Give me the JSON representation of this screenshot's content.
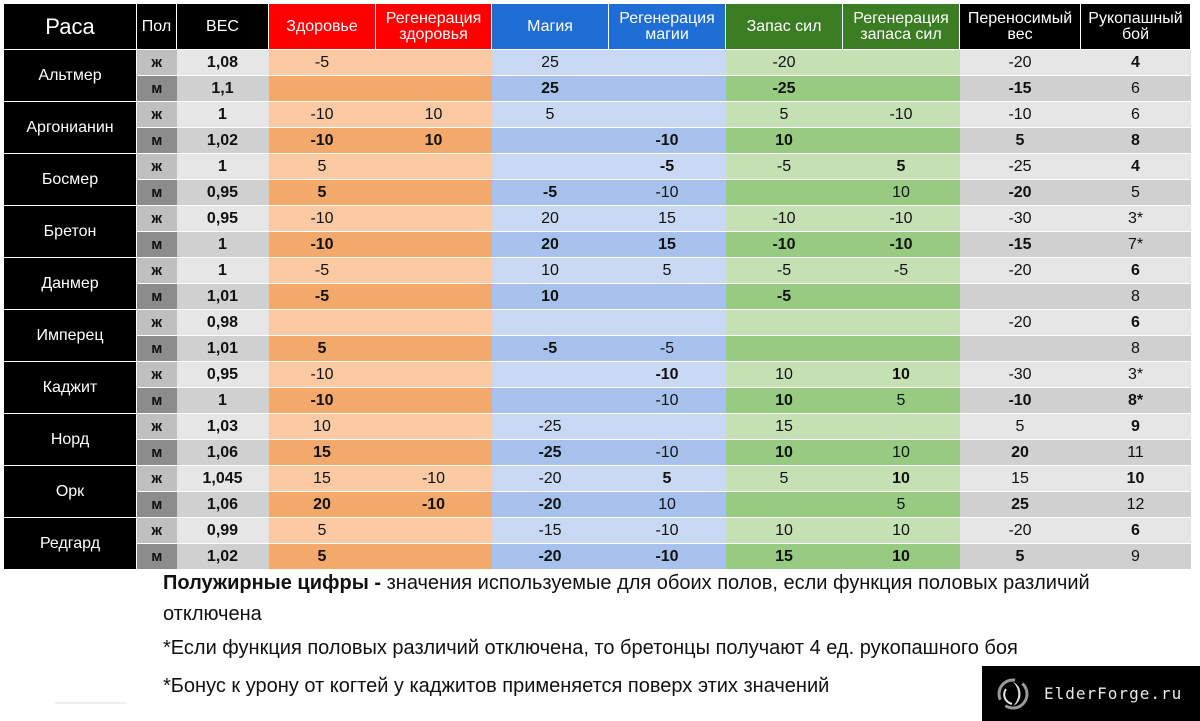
{
  "headers": {
    "race": "Раса",
    "sex": "Пол",
    "weight": "ВЕС",
    "health": "Здоровье",
    "health_regen": "Регенерация здоровья",
    "magic": "Магия",
    "magic_regen": "Регенерация магии",
    "stamina": "Запас сил",
    "stamina_regen": "Регенерация запаса сил",
    "carry": "Переносимый вес",
    "hand": "Рукопашный бой"
  },
  "races": [
    {
      "name": "Альтмер",
      "rows": [
        {
          "sex": "ж",
          "weight": "1,08",
          "hp": {
            "v": "-5",
            "b": false
          },
          "hpr": {
            "v": "",
            "b": false
          },
          "mg": {
            "v": "25",
            "b": false
          },
          "mgr": {
            "v": "",
            "b": false
          },
          "st": {
            "v": "-20",
            "b": false
          },
          "str": {
            "v": "",
            "b": false
          },
          "carry": {
            "v": "-20",
            "b": false
          },
          "hand": {
            "v": "4",
            "b": true
          }
        },
        {
          "sex": "м",
          "weight": "1,1",
          "hp": {
            "v": "",
            "b": false
          },
          "hpr": {
            "v": "",
            "b": false
          },
          "mg": {
            "v": "25",
            "b": true
          },
          "mgr": {
            "v": "",
            "b": false
          },
          "st": {
            "v": "-25",
            "b": true
          },
          "str": {
            "v": "",
            "b": false
          },
          "carry": {
            "v": "-15",
            "b": true
          },
          "hand": {
            "v": "6",
            "b": false
          }
        }
      ]
    },
    {
      "name": "Аргонианин",
      "rows": [
        {
          "sex": "ж",
          "weight": "1",
          "hp": {
            "v": "-10",
            "b": false
          },
          "hpr": {
            "v": "10",
            "b": false
          },
          "mg": {
            "v": "5",
            "b": false
          },
          "mgr": {
            "v": "",
            "b": false
          },
          "st": {
            "v": "5",
            "b": false
          },
          "str": {
            "v": "-10",
            "b": false
          },
          "carry": {
            "v": "-10",
            "b": false
          },
          "hand": {
            "v": "6",
            "b": false
          }
        },
        {
          "sex": "м",
          "weight": "1,02",
          "hp": {
            "v": "-10",
            "b": true
          },
          "hpr": {
            "v": "10",
            "b": true
          },
          "mg": {
            "v": "",
            "b": false
          },
          "mgr": {
            "v": "-10",
            "b": true
          },
          "st": {
            "v": "10",
            "b": true
          },
          "str": {
            "v": "",
            "b": false
          },
          "carry": {
            "v": "5",
            "b": true
          },
          "hand": {
            "v": "8",
            "b": true
          }
        }
      ]
    },
    {
      "name": "Босмер",
      "rows": [
        {
          "sex": "ж",
          "weight": "1",
          "hp": {
            "v": "5",
            "b": false
          },
          "hpr": {
            "v": "",
            "b": false
          },
          "mg": {
            "v": "",
            "b": false
          },
          "mgr": {
            "v": "-5",
            "b": true
          },
          "st": {
            "v": "-5",
            "b": false
          },
          "str": {
            "v": "5",
            "b": true
          },
          "carry": {
            "v": "-25",
            "b": false
          },
          "hand": {
            "v": "4",
            "b": true
          }
        },
        {
          "sex": "м",
          "weight": "0,95",
          "hp": {
            "v": "5",
            "b": true
          },
          "hpr": {
            "v": "",
            "b": false
          },
          "mg": {
            "v": "-5",
            "b": true
          },
          "mgr": {
            "v": "-10",
            "b": false
          },
          "st": {
            "v": "",
            "b": false
          },
          "str": {
            "v": "10",
            "b": false
          },
          "carry": {
            "v": "-20",
            "b": true
          },
          "hand": {
            "v": "5",
            "b": false
          }
        }
      ]
    },
    {
      "name": "Бретон",
      "rows": [
        {
          "sex": "ж",
          "weight": "0,95",
          "hp": {
            "v": "-10",
            "b": false
          },
          "hpr": {
            "v": "",
            "b": false
          },
          "mg": {
            "v": "20",
            "b": false
          },
          "mgr": {
            "v": "15",
            "b": false
          },
          "st": {
            "v": "-10",
            "b": false
          },
          "str": {
            "v": "-10",
            "b": false
          },
          "carry": {
            "v": "-30",
            "b": false
          },
          "hand": {
            "v": "3*",
            "b": false
          }
        },
        {
          "sex": "м",
          "weight": "1",
          "hp": {
            "v": "-10",
            "b": true
          },
          "hpr": {
            "v": "",
            "b": false
          },
          "mg": {
            "v": "20",
            "b": true
          },
          "mgr": {
            "v": "15",
            "b": true
          },
          "st": {
            "v": "-10",
            "b": true
          },
          "str": {
            "v": "-10",
            "b": true
          },
          "carry": {
            "v": "-15",
            "b": true
          },
          "hand": {
            "v": "7*",
            "b": false
          }
        }
      ]
    },
    {
      "name": "Данмер",
      "rows": [
        {
          "sex": "ж",
          "weight": "1",
          "hp": {
            "v": "-5",
            "b": false
          },
          "hpr": {
            "v": "",
            "b": false
          },
          "mg": {
            "v": "10",
            "b": false
          },
          "mgr": {
            "v": "5",
            "b": false
          },
          "st": {
            "v": "-5",
            "b": false
          },
          "str": {
            "v": "-5",
            "b": false
          },
          "carry": {
            "v": "-20",
            "b": false
          },
          "hand": {
            "v": "6",
            "b": true
          }
        },
        {
          "sex": "м",
          "weight": "1,01",
          "hp": {
            "v": "-5",
            "b": true
          },
          "hpr": {
            "v": "",
            "b": false
          },
          "mg": {
            "v": "10",
            "b": true
          },
          "mgr": {
            "v": "",
            "b": false
          },
          "st": {
            "v": "-5",
            "b": true
          },
          "str": {
            "v": "",
            "b": false
          },
          "carry": {
            "v": "",
            "b": false
          },
          "hand": {
            "v": "8",
            "b": false
          }
        }
      ]
    },
    {
      "name": "Имперец",
      "rows": [
        {
          "sex": "ж",
          "weight": "0,98",
          "hp": {
            "v": "",
            "b": false
          },
          "hpr": {
            "v": "",
            "b": false
          },
          "mg": {
            "v": "",
            "b": false
          },
          "mgr": {
            "v": "",
            "b": false
          },
          "st": {
            "v": "",
            "b": false
          },
          "str": {
            "v": "",
            "b": false
          },
          "carry": {
            "v": "-20",
            "b": false
          },
          "hand": {
            "v": "6",
            "b": true
          }
        },
        {
          "sex": "м",
          "weight": "1,01",
          "hp": {
            "v": "5",
            "b": true
          },
          "hpr": {
            "v": "",
            "b": false
          },
          "mg": {
            "v": "-5",
            "b": true
          },
          "mgr": {
            "v": "-5",
            "b": false
          },
          "st": {
            "v": "",
            "b": false
          },
          "str": {
            "v": "",
            "b": false
          },
          "carry": {
            "v": "",
            "b": false
          },
          "hand": {
            "v": "8",
            "b": false
          }
        }
      ]
    },
    {
      "name": "Каджит",
      "rows": [
        {
          "sex": "ж",
          "weight": "0,95",
          "hp": {
            "v": "-10",
            "b": false
          },
          "hpr": {
            "v": "",
            "b": false
          },
          "mg": {
            "v": "",
            "b": false
          },
          "mgr": {
            "v": "-10",
            "b": true
          },
          "st": {
            "v": "10",
            "b": false
          },
          "str": {
            "v": "10",
            "b": true
          },
          "carry": {
            "v": "-30",
            "b": false
          },
          "hand": {
            "v": "3*",
            "b": false
          }
        },
        {
          "sex": "м",
          "weight": "1",
          "hp": {
            "v": "-10",
            "b": true
          },
          "hpr": {
            "v": "",
            "b": false
          },
          "mg": {
            "v": "",
            "b": false
          },
          "mgr": {
            "v": "-10",
            "b": false
          },
          "st": {
            "v": "10",
            "b": true
          },
          "str": {
            "v": "5",
            "b": false
          },
          "carry": {
            "v": "-10",
            "b": true
          },
          "hand": {
            "v": "8*",
            "b": true
          }
        }
      ]
    },
    {
      "name": "Норд",
      "rows": [
        {
          "sex": "ж",
          "weight": "1,03",
          "hp": {
            "v": "10",
            "b": false
          },
          "hpr": {
            "v": "",
            "b": false
          },
          "mg": {
            "v": "-25",
            "b": false
          },
          "mgr": {
            "v": "",
            "b": false
          },
          "st": {
            "v": "15",
            "b": false
          },
          "str": {
            "v": "",
            "b": false
          },
          "carry": {
            "v": "5",
            "b": false
          },
          "hand": {
            "v": "9",
            "b": true
          }
        },
        {
          "sex": "м",
          "weight": "1,06",
          "hp": {
            "v": "15",
            "b": true
          },
          "hpr": {
            "v": "",
            "b": false
          },
          "mg": {
            "v": "-25",
            "b": true
          },
          "mgr": {
            "v": "-10",
            "b": false
          },
          "st": {
            "v": "10",
            "b": true
          },
          "str": {
            "v": "10",
            "b": false
          },
          "carry": {
            "v": "20",
            "b": true
          },
          "hand": {
            "v": "11",
            "b": false
          }
        }
      ]
    },
    {
      "name": "Орк",
      "rows": [
        {
          "sex": "ж",
          "weight": "1,045",
          "hp": {
            "v": "15",
            "b": false
          },
          "hpr": {
            "v": "-10",
            "b": false
          },
          "mg": {
            "v": "-20",
            "b": false
          },
          "mgr": {
            "v": "5",
            "b": true
          },
          "st": {
            "v": "5",
            "b": false
          },
          "str": {
            "v": "10",
            "b": true
          },
          "carry": {
            "v": "15",
            "b": false
          },
          "hand": {
            "v": "10",
            "b": true
          }
        },
        {
          "sex": "м",
          "weight": "1,06",
          "hp": {
            "v": "20",
            "b": true
          },
          "hpr": {
            "v": "-10",
            "b": true
          },
          "mg": {
            "v": "-20",
            "b": true
          },
          "mgr": {
            "v": "10",
            "b": false
          },
          "st": {
            "v": "",
            "b": false
          },
          "str": {
            "v": "5",
            "b": false
          },
          "carry": {
            "v": "25",
            "b": true
          },
          "hand": {
            "v": "12",
            "b": false
          }
        }
      ]
    },
    {
      "name": "Редгард",
      "rows": [
        {
          "sex": "ж",
          "weight": "0,99",
          "hp": {
            "v": "5",
            "b": false
          },
          "hpr": {
            "v": "",
            "b": false
          },
          "mg": {
            "v": "-15",
            "b": false
          },
          "mgr": {
            "v": "-10",
            "b": false
          },
          "st": {
            "v": "10",
            "b": false
          },
          "str": {
            "v": "10",
            "b": false
          },
          "carry": {
            "v": "-20",
            "b": false
          },
          "hand": {
            "v": "6",
            "b": true
          }
        },
        {
          "sex": "м",
          "weight": "1,02",
          "hp": {
            "v": "5",
            "b": true
          },
          "hpr": {
            "v": "",
            "b": false
          },
          "mg": {
            "v": "-20",
            "b": true
          },
          "mgr": {
            "v": "-10",
            "b": true
          },
          "st": {
            "v": "15",
            "b": true
          },
          "str": {
            "v": "10",
            "b": true
          },
          "carry": {
            "v": "5",
            "b": true
          },
          "hand": {
            "v": "9",
            "b": false
          }
        }
      ]
    }
  ],
  "notes": {
    "bold_label": "Полужирные цифры -",
    "line1_rest": " значения используемые для обоих полов, если функция половых различий отключена",
    "line2": "*Если функция половых различий отключена, то бретонцы получают 4 ед. рукопашного боя",
    "line3": "*Бонус к урону от когтей у каджитов применяется поверх этих значений"
  },
  "logo": {
    "text": "ElderForge.ru",
    "icon": "swirl-logo-icon"
  },
  "colors": {
    "header_black": "#000000",
    "health_red": "#ff0000",
    "magic_blue": "#1f6ed6",
    "stamina_green": "#3b7d23"
  }
}
